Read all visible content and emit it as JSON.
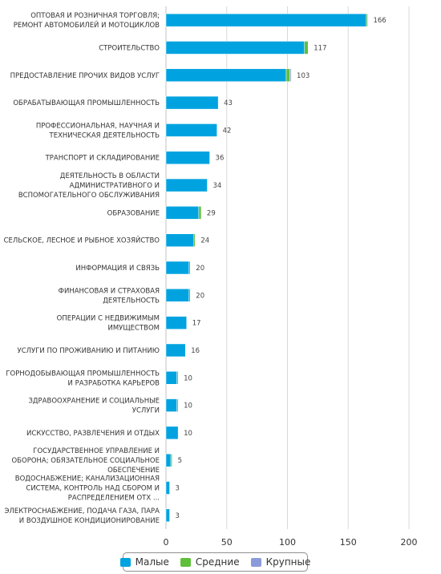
{
  "chart_data": {
    "type": "bar",
    "orientation": "horizontal",
    "stacked": true,
    "categories": [
      "ОПТОВАЯ И РОЗНИЧНАЯ ТОРГОВЛЯ; РЕМОНТ АВТОМОБИЛЕЙ И МОТОЦИКЛОВ",
      "СТРОИТЕЛЬСТВО",
      "ПРЕДОСТАВЛЕНИЕ ПРОЧИХ ВИДОВ УСЛУГ",
      "ОБРАБАТЫВАЮЩАЯ ПРОМЫШЛЕННОСТЬ",
      "ПРОФЕССИОНАЛЬНАЯ, НАУЧНАЯ И ТЕХНИЧЕСКАЯ ДЕЯТЕЛЬНОСТЬ",
      "ТРАНСПОРТ И СКЛАДИРОВАНИЕ",
      "ДЕЯТЕЛЬНОСТЬ В ОБЛАСТИ АДМИНИСТРАТИВНОГО И ВСПОМОГАТЕЛЬНОГО ОБСЛУЖИВАНИЯ",
      "ОБРАЗОВАНИЕ",
      "СЕЛЬСКОЕ, ЛЕСНОЕ И РЫБНОЕ ХОЗЯЙСТВО",
      "ИНФОРМАЦИЯ И СВЯЗЬ",
      "ФИНАНСОВАЯ И СТРАХОВАЯ ДЕЯТЕЛЬНОСТЬ",
      "ОПЕРАЦИИ С НЕДВИЖИМЫМ ИМУЩЕСТВОМ",
      "УСЛУГИ ПО ПРОЖИВАНИЮ И ПИТАНИЮ",
      "ГОРНОДОБЫВАЮЩАЯ ПРОМЫШЛЕННОСТЬ И РАЗРАБОТКА КАРЬЕРОВ",
      "ЗДРАВООХРАНЕНИЕ И СОЦИАЛЬНЫЕ УСЛУГИ",
      "ИСКУССТВО, РАЗВЛЕЧЕНИЯ И ОТДЫХ",
      "ГОСУДАРСТВЕННОЕ УПРАВЛЕНИЕ И ОБОРОНА; ОБЯЗАТЕЛЬНОЕ СОЦИАЛЬНОЕ ОБЕСПЕЧЕНИЕ",
      "ВОДОСНАБЖЕНИЕ; КАНАЛИЗАЦИОННАЯ СИСТЕМА, КОНТРОЛЬ НАД СБОРОМ И РАСПРЕДЕЛЕНИЕМ ОТХ ...",
      "ЭЛЕКТРОСНАБЖЕНИЕ, ПОДАЧА ГАЗА, ПАРА И ВОЗДУШНОЕ КОНДИЦИОНИРОВАНИЕ"
    ],
    "category_lines": [
      [
        "ОПТОВАЯ И РОЗНИЧНАЯ ТОРГОВЛЯ;",
        "РЕМОНТ АВТОМОБИЛЕЙ И МОТОЦИКЛОВ"
      ],
      [
        "СТРОИТЕЛЬСТВО"
      ],
      [
        "ПРЕДОСТАВЛЕНИЕ ПРОЧИХ ВИДОВ УСЛУГ"
      ],
      [
        "ОБРАБАТЫВАЮЩАЯ ПРОМЫШЛЕННОСТЬ"
      ],
      [
        "ПРОФЕССИОНАЛЬНАЯ, НАУЧНАЯ И",
        "ТЕХНИЧЕСКАЯ ДЕЯТЕЛЬНОСТЬ"
      ],
      [
        "ТРАНСПОРТ И СКЛАДИРОВАНИЕ"
      ],
      [
        "ДЕЯТЕЛЬНОСТЬ В ОБЛАСТИ",
        "АДМИНИСТРАТИВНОГО И",
        "ВСПОМОГАТЕЛЬНОГО ОБСЛУЖИВАНИЯ"
      ],
      [
        "ОБРАЗОВАНИЕ"
      ],
      [
        "СЕЛЬСКОЕ, ЛЕСНОЕ И РЫБНОЕ ХОЗЯЙСТВО"
      ],
      [
        "ИНФОРМАЦИЯ И СВЯЗЬ"
      ],
      [
        "ФИНАНСОВАЯ И СТРАХОВАЯ",
        "ДЕЯТЕЛЬНОСТЬ"
      ],
      [
        "ОПЕРАЦИИ С НЕДВИЖИМЫМ",
        "ИМУЩЕСТВОМ"
      ],
      [
        "УСЛУГИ ПО ПРОЖИВАНИЮ И ПИТАНИЮ"
      ],
      [
        "ГОРНОДОБЫВАЮЩАЯ ПРОМЫШЛЕННОСТЬ",
        "И РАЗРАБОТКА КАРЬЕРОВ"
      ],
      [
        "ЗДРАВООХРАНЕНИЕ И СОЦИАЛЬНЫЕ",
        "УСЛУГИ"
      ],
      [
        "ИСКУССТВО, РАЗВЛЕЧЕНИЯ И ОТДЫХ"
      ],
      [
        "ГОСУДАРСТВЕННОЕ УПРАВЛЕНИЕ И",
        "ОБОРОНА; ОБЯЗАТЕЛЬНОЕ СОЦИАЛЬНОЕ",
        "ОБЕСПЕЧЕНИЕ"
      ],
      [
        "ВОДОСНАБЖЕНИЕ; КАНАЛИЗАЦИОННАЯ",
        "СИСТЕМА, КОНТРОЛЬ НАД СБОРОМ И",
        "РАСПРЕДЕЛЕНИЕМ ОТХ ..."
      ],
      [
        "ЭЛЕКТРОСНАБЖЕНИЕ, ПОДАЧА ГАЗА, ПАРА",
        "И ВОЗДУШНОЕ КОНДИЦИОНИРОВАНИЕ"
      ]
    ],
    "series": [
      {
        "name": "Малые",
        "color": "#00a3e0",
        "values": [
          165,
          114,
          99,
          43,
          42,
          36,
          34,
          27,
          23,
          19,
          19,
          17,
          16,
          9,
          9,
          10,
          4,
          3,
          3
        ]
      },
      {
        "name": "Средние",
        "color": "#5fbf3a",
        "values": [
          1,
          3,
          3,
          0,
          0,
          0,
          0,
          2,
          1,
          1,
          1,
          0,
          0,
          1,
          1,
          0,
          1,
          0,
          0
        ]
      },
      {
        "name": "Крупные",
        "color": "#8b9bd9",
        "values": [
          0,
          0,
          1,
          0,
          0,
          0,
          0,
          0,
          0,
          0,
          0,
          0,
          0,
          0,
          0,
          0,
          0,
          0,
          0
        ]
      }
    ],
    "totals": [
      166,
      117,
      103,
      43,
      42,
      36,
      34,
      29,
      24,
      20,
      20,
      17,
      16,
      10,
      10,
      10,
      5,
      3,
      3
    ],
    "x_ticks": [
      0,
      50,
      100,
      150,
      200
    ],
    "xlim": [
      0,
      200
    ],
    "grid": true,
    "legend_position": "bottom"
  }
}
